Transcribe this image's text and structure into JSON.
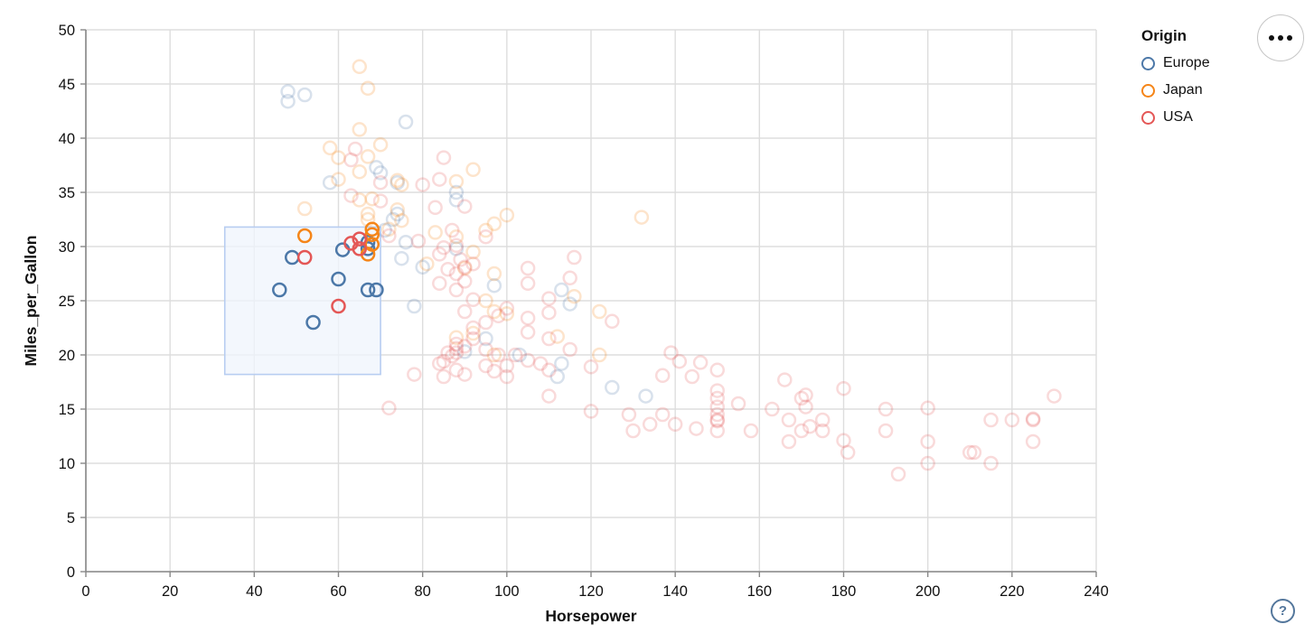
{
  "controls": {
    "menu_button": {
      "icon": "ellipsis",
      "dot_count": 3
    },
    "help_button": {
      "icon": "question-mark",
      "label": "?"
    }
  },
  "chart_data": {
    "type": "scatter",
    "title": "",
    "xlabel": "Horsepower",
    "ylabel": "Miles_per_Gallon",
    "xlim": [
      0,
      240
    ],
    "ylim": [
      0,
      50
    ],
    "x_ticks": [
      0,
      20,
      40,
      60,
      80,
      100,
      120,
      140,
      160,
      180,
      200,
      220,
      240
    ],
    "y_ticks": [
      0,
      5,
      10,
      15,
      20,
      25,
      30,
      35,
      40,
      45,
      50
    ],
    "grid": true,
    "grid_color": "#dddddd",
    "axis_color": "#888888",
    "label_color": "#111111",
    "legend": {
      "title": "Origin",
      "position": "top-right",
      "entries": [
        {
          "label": "Europe",
          "color": "#4c78a8"
        },
        {
          "label": "Japan",
          "color": "#f58518"
        },
        {
          "label": "USA",
          "color": "#e45756"
        }
      ]
    },
    "brush_selection": {
      "x_range": [
        33,
        70
      ],
      "y_range": [
        18.2,
        31.8
      ],
      "fill": "#eff4fc",
      "fill_opacity": 0.75,
      "stroke": "#b7cdf1"
    },
    "point_style": {
      "radius": 7,
      "stroke_width": 2.5,
      "selected_opacity": 1,
      "unselected_opacity": 0.22
    },
    "series": [
      {
        "name": "Europe",
        "color": "#4c78a8",
        "selected": [
          [
            49,
            29.0
          ],
          [
            46,
            26.0
          ],
          [
            60,
            27.0
          ],
          [
            67,
            26.0
          ],
          [
            69,
            26.0
          ],
          [
            54,
            23.0
          ],
          [
            61,
            29.7
          ],
          [
            67,
            30.4
          ],
          [
            67,
            29.8
          ]
        ],
        "unselected": [
          [
            48,
            44.3
          ],
          [
            48,
            43.4
          ],
          [
            52,
            44.0
          ],
          [
            76,
            41.5
          ],
          [
            69,
            37.3
          ],
          [
            70,
            36.8
          ],
          [
            74,
            35.9
          ],
          [
            58,
            35.9
          ],
          [
            88,
            35.0
          ],
          [
            88,
            34.3
          ],
          [
            74,
            33.0
          ],
          [
            73,
            32.5
          ],
          [
            71,
            31.5
          ],
          [
            76,
            30.4
          ],
          [
            88,
            29.8
          ],
          [
            75,
            28.9
          ],
          [
            80,
            28.1
          ],
          [
            97,
            26.4
          ],
          [
            113,
            26.0
          ],
          [
            115,
            24.7
          ],
          [
            78,
            24.5
          ],
          [
            95,
            21.5
          ],
          [
            90,
            20.3
          ],
          [
            103,
            20.0
          ],
          [
            113,
            19.2
          ],
          [
            112,
            18.0
          ],
          [
            125,
            17.0
          ],
          [
            133,
            16.2
          ]
        ]
      },
      {
        "name": "Japan",
        "color": "#f58518",
        "selected": [
          [
            52,
            31.0
          ],
          [
            68,
            31.6
          ],
          [
            68,
            31.1
          ],
          [
            68,
            30.2
          ],
          [
            67,
            29.3
          ]
        ],
        "unselected": [
          [
            65,
            46.6
          ],
          [
            67,
            44.6
          ],
          [
            65,
            40.8
          ],
          [
            70,
            39.4
          ],
          [
            58,
            39.1
          ],
          [
            67,
            38.3
          ],
          [
            60,
            38.2
          ],
          [
            92,
            37.1
          ],
          [
            65,
            36.9
          ],
          [
            60,
            36.2
          ],
          [
            74,
            36.1
          ],
          [
            88,
            36.0
          ],
          [
            75,
            35.7
          ],
          [
            68,
            34.4
          ],
          [
            65,
            34.3
          ],
          [
            52,
            33.5
          ],
          [
            74,
            33.4
          ],
          [
            67,
            33.0
          ],
          [
            132,
            32.7
          ],
          [
            100,
            32.9
          ],
          [
            97,
            32.1
          ],
          [
            67,
            32.5
          ],
          [
            75,
            32.4
          ],
          [
            72,
            31.6
          ],
          [
            95,
            31.5
          ],
          [
            83,
            31.3
          ],
          [
            88,
            30.9
          ],
          [
            92,
            29.5
          ],
          [
            81,
            28.4
          ],
          [
            90,
            28.0
          ],
          [
            97,
            27.5
          ],
          [
            116,
            25.4
          ],
          [
            95,
            25.0
          ],
          [
            97,
            24.0
          ],
          [
            122,
            24.0
          ],
          [
            100,
            23.8
          ],
          [
            92,
            22.0
          ],
          [
            88,
            21.6
          ],
          [
            112,
            21.7
          ],
          [
            97,
            20.0
          ],
          [
            122,
            20.0
          ]
        ]
      },
      {
        "name": "USA",
        "color": "#e45756",
        "selected": [
          [
            52,
            29.0
          ],
          [
            60,
            24.5
          ],
          [
            63,
            30.3
          ],
          [
            65,
            30.7
          ],
          [
            65,
            29.8
          ]
        ],
        "unselected": [
          [
            64,
            39.0
          ],
          [
            63,
            38.0
          ],
          [
            85,
            38.2
          ],
          [
            84,
            36.2
          ],
          [
            80,
            35.7
          ],
          [
            70,
            35.9
          ],
          [
            63,
            34.7
          ],
          [
            70,
            34.2
          ],
          [
            90,
            33.7
          ],
          [
            83,
            33.6
          ],
          [
            87,
            31.5
          ],
          [
            72,
            31.0
          ],
          [
            95,
            30.9
          ],
          [
            79,
            30.5
          ],
          [
            88,
            30.1
          ],
          [
            85,
            29.9
          ],
          [
            84,
            29.3
          ],
          [
            116,
            29.0
          ],
          [
            89,
            28.8
          ],
          [
            92,
            28.4
          ],
          [
            90,
            28.1
          ],
          [
            105,
            28.0
          ],
          [
            86,
            27.9
          ],
          [
            88,
            27.5
          ],
          [
            115,
            27.1
          ],
          [
            90,
            26.8
          ],
          [
            105,
            26.6
          ],
          [
            84,
            26.6
          ],
          [
            88,
            26.0
          ],
          [
            110,
            25.2
          ],
          [
            92,
            25.1
          ],
          [
            100,
            24.3
          ],
          [
            90,
            24.0
          ],
          [
            110,
            23.9
          ],
          [
            98,
            23.6
          ],
          [
            105,
            23.4
          ],
          [
            125,
            23.1
          ],
          [
            95,
            23.0
          ],
          [
            92,
            22.5
          ],
          [
            105,
            22.1
          ],
          [
            88,
            21.0
          ],
          [
            92,
            21.5
          ],
          [
            110,
            21.5
          ],
          [
            90,
            20.8
          ],
          [
            95,
            20.5
          ],
          [
            115,
            20.5
          ],
          [
            88,
            20.6
          ],
          [
            86,
            20.2
          ],
          [
            88,
            20.2
          ],
          [
            98,
            20.0
          ],
          [
            102,
            20.0
          ],
          [
            139,
            20.2
          ],
          [
            87,
            19.9
          ],
          [
            105,
            19.5
          ],
          [
            141,
            19.4
          ],
          [
            146,
            19.3
          ],
          [
            85,
            19.4
          ],
          [
            84,
            19.2
          ],
          [
            108,
            19.2
          ],
          [
            100,
            19.0
          ],
          [
            95,
            19.0
          ],
          [
            120,
            18.9
          ],
          [
            150,
            18.6
          ],
          [
            88,
            18.6
          ],
          [
            97,
            18.5
          ],
          [
            90,
            18.2
          ],
          [
            78,
            18.2
          ],
          [
            144,
            18.0
          ],
          [
            137,
            18.1
          ],
          [
            85,
            18.0
          ],
          [
            100,
            18.0
          ],
          [
            110,
            18.6
          ],
          [
            166,
            17.7
          ],
          [
            180,
            16.9
          ],
          [
            150,
            16.7
          ],
          [
            230,
            16.2
          ],
          [
            170,
            16.0
          ],
          [
            150,
            16.0
          ],
          [
            171,
            16.3
          ],
          [
            110,
            16.2
          ],
          [
            163,
            15.0
          ],
          [
            155,
            15.5
          ],
          [
            150,
            15.2
          ],
          [
            171,
            15.2
          ],
          [
            72,
            15.1
          ],
          [
            190,
            15.0
          ],
          [
            200,
            15.1
          ],
          [
            120,
            14.8
          ],
          [
            129,
            14.5
          ],
          [
            150,
            14.5
          ],
          [
            137,
            14.5
          ],
          [
            167,
            14.0
          ],
          [
            175,
            14.0
          ],
          [
            150,
            14.0
          ],
          [
            215,
            14.0
          ],
          [
            220,
            14.0
          ],
          [
            225,
            14.0
          ],
          [
            225,
            14.1
          ],
          [
            150,
            13.9
          ],
          [
            134,
            13.6
          ],
          [
            140,
            13.6
          ],
          [
            130,
            13.0
          ],
          [
            145,
            13.2
          ],
          [
            150,
            13.0
          ],
          [
            158,
            13.0
          ],
          [
            170,
            13.0
          ],
          [
            172,
            13.4
          ],
          [
            175,
            13.0
          ],
          [
            190,
            13.0
          ],
          [
            167,
            12.0
          ],
          [
            180,
            12.1
          ],
          [
            200,
            12.0
          ],
          [
            225,
            12.0
          ],
          [
            181,
            11.0
          ],
          [
            210,
            11.0
          ],
          [
            211,
            11.0
          ],
          [
            215,
            10.0
          ],
          [
            200,
            10.0
          ],
          [
            193,
            9.0
          ]
        ]
      }
    ]
  }
}
